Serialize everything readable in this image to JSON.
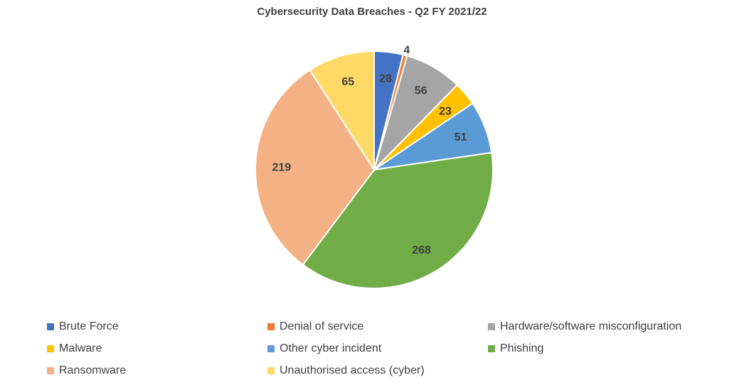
{
  "chart_data": {
    "type": "pie",
    "title": "Cybersecurity Data Breaches - Q2 FY 2021/22",
    "legend_position": "bottom",
    "slices": [
      {
        "name": "Brute Force",
        "value": 28,
        "color": "#4472C4"
      },
      {
        "name": "Denial of service",
        "value": 4,
        "color": "#ED7D31"
      },
      {
        "name": "Hardware/software misconfiguration",
        "value": 56,
        "color": "#A5A5A5"
      },
      {
        "name": "Malware",
        "value": 23,
        "color": "#FFC000"
      },
      {
        "name": "Other cyber incident",
        "value": 51,
        "color": "#5B9BD5"
      },
      {
        "name": "Phishing",
        "value": 268,
        "color": "#70AD47"
      },
      {
        "name": "Ransomware",
        "value": 219,
        "color": "#F4B183"
      },
      {
        "name": "Unauthorised access (cyber)",
        "value": 65,
        "color": "#FFD966"
      }
    ]
  }
}
